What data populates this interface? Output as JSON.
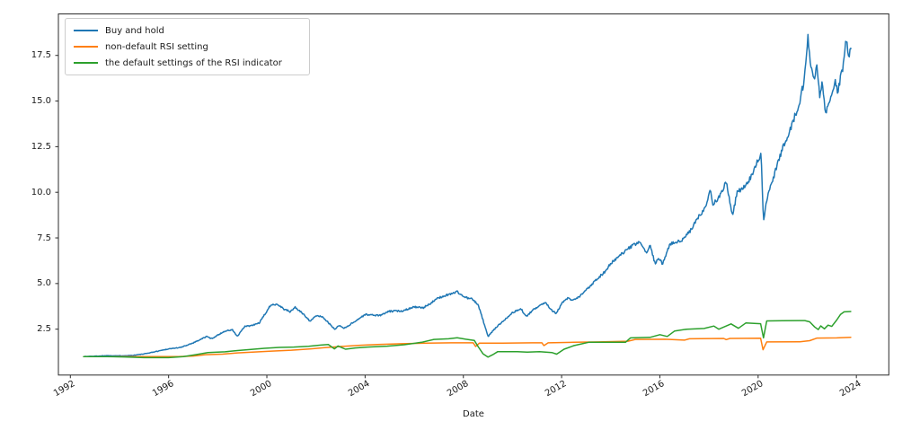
{
  "chart_data": {
    "type": "line",
    "title": "",
    "xlabel": "Date",
    "ylabel": "",
    "grid": false,
    "legend_position": "upper left",
    "xlim_years": [
      1991.5,
      2025.3
    ],
    "ylim": [
      0.0,
      19.8
    ],
    "x_ticks": [
      {
        "label": "1992",
        "year": 1992
      },
      {
        "label": "1996",
        "year": 1996
      },
      {
        "label": "2000",
        "year": 2000
      },
      {
        "label": "2004",
        "year": 2004
      },
      {
        "label": "2008",
        "year": 2008
      },
      {
        "label": "2012",
        "year": 2012
      },
      {
        "label": "2016",
        "year": 2016
      },
      {
        "label": "2020",
        "year": 2020
      },
      {
        "label": "2024",
        "year": 2024
      }
    ],
    "y_ticks": [
      {
        "label": "2.5",
        "value": 2.5
      },
      {
        "label": "5.0",
        "value": 5.0
      },
      {
        "label": "7.5",
        "value": 7.5
      },
      {
        "label": "10.0",
        "value": 10.0
      },
      {
        "label": "12.5",
        "value": 12.5
      },
      {
        "label": "15.0",
        "value": 15.0
      },
      {
        "label": "17.5",
        "value": 17.5
      }
    ],
    "series": [
      {
        "name": "Buy and hold",
        "color": "#1f77b4",
        "style": "noisy",
        "noise": 0.013,
        "points": [
          [
            1992.54,
            1.0
          ],
          [
            1993.0,
            1.02
          ],
          [
            1993.5,
            1.05
          ],
          [
            1994.0,
            1.04
          ],
          [
            1994.5,
            1.06
          ],
          [
            1995.0,
            1.14
          ],
          [
            1995.5,
            1.28
          ],
          [
            1996.0,
            1.42
          ],
          [
            1996.5,
            1.5
          ],
          [
            1997.0,
            1.75
          ],
          [
            1997.55,
            2.1
          ],
          [
            1997.75,
            1.98
          ],
          [
            1998.3,
            2.4
          ],
          [
            1998.6,
            2.46
          ],
          [
            1998.8,
            2.1
          ],
          [
            1999.1,
            2.65
          ],
          [
            1999.4,
            2.7
          ],
          [
            1999.7,
            2.85
          ],
          [
            2000.1,
            3.7
          ],
          [
            2000.25,
            3.88
          ],
          [
            2000.45,
            3.85
          ],
          [
            2000.7,
            3.6
          ],
          [
            2000.95,
            3.45
          ],
          [
            2001.15,
            3.7
          ],
          [
            2001.55,
            3.25
          ],
          [
            2001.75,
            2.95
          ],
          [
            2002.05,
            3.25
          ],
          [
            2002.3,
            3.15
          ],
          [
            2002.75,
            2.5
          ],
          [
            2002.95,
            2.7
          ],
          [
            2003.15,
            2.55
          ],
          [
            2003.5,
            2.85
          ],
          [
            2004.0,
            3.3
          ],
          [
            2004.6,
            3.25
          ],
          [
            2005.0,
            3.48
          ],
          [
            2005.5,
            3.5
          ],
          [
            2006.0,
            3.73
          ],
          [
            2006.35,
            3.65
          ],
          [
            2007.0,
            4.22
          ],
          [
            2007.4,
            4.4
          ],
          [
            2007.75,
            4.55
          ],
          [
            2008.05,
            4.25
          ],
          [
            2008.35,
            4.15
          ],
          [
            2008.6,
            3.85
          ],
          [
            2008.8,
            3.0
          ],
          [
            2009.0,
            2.1
          ],
          [
            2009.3,
            2.55
          ],
          [
            2009.7,
            3.05
          ],
          [
            2010.0,
            3.4
          ],
          [
            2010.35,
            3.62
          ],
          [
            2010.55,
            3.18
          ],
          [
            2010.8,
            3.5
          ],
          [
            2011.1,
            3.82
          ],
          [
            2011.35,
            3.95
          ],
          [
            2011.6,
            3.55
          ],
          [
            2011.78,
            3.35
          ],
          [
            2012.0,
            3.9
          ],
          [
            2012.25,
            4.2
          ],
          [
            2012.45,
            4.05
          ],
          [
            2012.75,
            4.3
          ],
          [
            2013.0,
            4.65
          ],
          [
            2013.4,
            5.2
          ],
          [
            2013.8,
            5.7
          ],
          [
            2014.0,
            6.1
          ],
          [
            2014.4,
            6.55
          ],
          [
            2014.75,
            6.95
          ],
          [
            2015.2,
            7.3
          ],
          [
            2015.45,
            6.6
          ],
          [
            2015.6,
            7.15
          ],
          [
            2015.8,
            6.1
          ],
          [
            2015.95,
            6.45
          ],
          [
            2016.1,
            6.05
          ],
          [
            2016.4,
            7.15
          ],
          [
            2016.9,
            7.35
          ],
          [
            2017.25,
            7.9
          ],
          [
            2017.6,
            8.7
          ],
          [
            2017.9,
            9.3
          ],
          [
            2018.05,
            10.2
          ],
          [
            2018.15,
            9.3
          ],
          [
            2018.45,
            9.8
          ],
          [
            2018.7,
            10.55
          ],
          [
            2018.95,
            8.7
          ],
          [
            2019.15,
            10.0
          ],
          [
            2019.45,
            10.35
          ],
          [
            2019.75,
            10.9
          ],
          [
            2020.0,
            11.8
          ],
          [
            2020.12,
            12.1
          ],
          [
            2020.22,
            8.4
          ],
          [
            2020.35,
            9.6
          ],
          [
            2020.6,
            10.7
          ],
          [
            2020.85,
            11.8
          ],
          [
            2021.0,
            12.4
          ],
          [
            2021.2,
            13.1
          ],
          [
            2021.45,
            14.0
          ],
          [
            2021.7,
            15.0
          ],
          [
            2021.85,
            16.0
          ],
          [
            2021.98,
            17.9
          ],
          [
            2022.02,
            18.55
          ],
          [
            2022.12,
            17.2
          ],
          [
            2022.3,
            16.2
          ],
          [
            2022.4,
            17.0
          ],
          [
            2022.5,
            15.3
          ],
          [
            2022.62,
            16.0
          ],
          [
            2022.75,
            14.2
          ],
          [
            2022.85,
            14.8
          ],
          [
            2023.0,
            15.4
          ],
          [
            2023.12,
            16.1
          ],
          [
            2023.25,
            15.5
          ],
          [
            2023.45,
            16.9
          ],
          [
            2023.58,
            18.3
          ],
          [
            2023.7,
            17.5
          ],
          [
            2023.77,
            17.9
          ]
        ]
      },
      {
        "name": "non-default RSI setting",
        "color": "#ff7f0e",
        "style": "line",
        "noise": 0,
        "points": [
          [
            1992.54,
            1.0
          ],
          [
            1996.4,
            1.0
          ],
          [
            1997.0,
            1.03
          ],
          [
            1997.5,
            1.1
          ],
          [
            1998.2,
            1.13
          ],
          [
            1998.8,
            1.2
          ],
          [
            1999.5,
            1.25
          ],
          [
            2000.2,
            1.3
          ],
          [
            2001.0,
            1.35
          ],
          [
            2001.8,
            1.42
          ],
          [
            2002.3,
            1.48
          ],
          [
            2003.0,
            1.55
          ],
          [
            2003.8,
            1.62
          ],
          [
            2004.5,
            1.66
          ],
          [
            2005.5,
            1.7
          ],
          [
            2006.5,
            1.73
          ],
          [
            2007.5,
            1.75
          ],
          [
            2008.4,
            1.75
          ],
          [
            2008.5,
            1.55
          ],
          [
            2008.65,
            1.73
          ],
          [
            2009.6,
            1.73
          ],
          [
            2010.8,
            1.75
          ],
          [
            2011.2,
            1.75
          ],
          [
            2011.28,
            1.6
          ],
          [
            2011.45,
            1.75
          ],
          [
            2012.5,
            1.78
          ],
          [
            2013.5,
            1.8
          ],
          [
            2014.7,
            1.84
          ],
          [
            2015.0,
            1.94
          ],
          [
            2016.2,
            1.95
          ],
          [
            2017.0,
            1.9
          ],
          [
            2017.2,
            1.97
          ],
          [
            2018.6,
            1.99
          ],
          [
            2018.7,
            1.93
          ],
          [
            2018.85,
            1.99
          ],
          [
            2020.1,
            2.0
          ],
          [
            2020.2,
            1.37
          ],
          [
            2020.35,
            1.8
          ],
          [
            2021.7,
            1.81
          ],
          [
            2022.1,
            1.87
          ],
          [
            2022.4,
            2.01
          ],
          [
            2023.2,
            2.02
          ],
          [
            2023.77,
            2.05
          ]
        ]
      },
      {
        "name": "the default settings of the RSI indicator",
        "color": "#2ca02c",
        "style": "line",
        "noise": 0,
        "points": [
          [
            1992.54,
            1.0
          ],
          [
            1993.5,
            1.0
          ],
          [
            1994.2,
            0.98
          ],
          [
            1995.0,
            0.94
          ],
          [
            1996.0,
            0.94
          ],
          [
            1996.6,
            1.0
          ],
          [
            1997.1,
            1.1
          ],
          [
            1997.6,
            1.22
          ],
          [
            1998.3,
            1.26
          ],
          [
            1998.8,
            1.33
          ],
          [
            1999.3,
            1.38
          ],
          [
            1999.9,
            1.45
          ],
          [
            2000.5,
            1.5
          ],
          [
            2001.1,
            1.52
          ],
          [
            2001.7,
            1.56
          ],
          [
            2002.2,
            1.63
          ],
          [
            2002.5,
            1.66
          ],
          [
            2002.75,
            1.42
          ],
          [
            2002.9,
            1.58
          ],
          [
            2003.2,
            1.4
          ],
          [
            2003.6,
            1.47
          ],
          [
            2004.1,
            1.52
          ],
          [
            2004.9,
            1.57
          ],
          [
            2005.6,
            1.65
          ],
          [
            2006.3,
            1.78
          ],
          [
            2006.8,
            1.94
          ],
          [
            2007.4,
            1.97
          ],
          [
            2007.75,
            2.03
          ],
          [
            2008.1,
            1.95
          ],
          [
            2008.45,
            1.88
          ],
          [
            2008.6,
            1.55
          ],
          [
            2008.8,
            1.15
          ],
          [
            2009.0,
            0.97
          ],
          [
            2009.2,
            1.1
          ],
          [
            2009.4,
            1.27
          ],
          [
            2010.2,
            1.27
          ],
          [
            2010.6,
            1.24
          ],
          [
            2011.1,
            1.27
          ],
          [
            2011.6,
            1.22
          ],
          [
            2011.8,
            1.13
          ],
          [
            2012.1,
            1.4
          ],
          [
            2012.5,
            1.6
          ],
          [
            2013.1,
            1.78
          ],
          [
            2014.6,
            1.78
          ],
          [
            2014.8,
            2.02
          ],
          [
            2015.6,
            2.05
          ],
          [
            2016.0,
            2.2
          ],
          [
            2016.3,
            2.1
          ],
          [
            2016.6,
            2.4
          ],
          [
            2017.1,
            2.5
          ],
          [
            2017.8,
            2.54
          ],
          [
            2018.2,
            2.67
          ],
          [
            2018.4,
            2.5
          ],
          [
            2018.9,
            2.79
          ],
          [
            2019.2,
            2.55
          ],
          [
            2019.5,
            2.84
          ],
          [
            2020.1,
            2.8
          ],
          [
            2020.22,
            2.02
          ],
          [
            2020.35,
            2.95
          ],
          [
            2021.0,
            2.96
          ],
          [
            2021.9,
            2.97
          ],
          [
            2022.1,
            2.9
          ],
          [
            2022.3,
            2.62
          ],
          [
            2022.45,
            2.48
          ],
          [
            2022.55,
            2.68
          ],
          [
            2022.7,
            2.52
          ],
          [
            2022.85,
            2.72
          ],
          [
            2023.0,
            2.65
          ],
          [
            2023.2,
            3.0
          ],
          [
            2023.35,
            3.3
          ],
          [
            2023.5,
            3.45
          ],
          [
            2023.77,
            3.47
          ]
        ]
      }
    ]
  }
}
